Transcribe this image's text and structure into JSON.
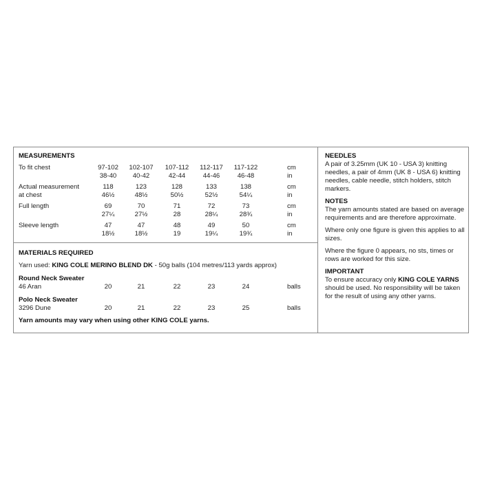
{
  "measurements": {
    "title": "MEASUREMENTS",
    "rows": [
      {
        "label": [
          "To fit chest",
          ""
        ],
        "cm": [
          "97-102",
          "102-107",
          "107-112",
          "112-117",
          "117-122"
        ],
        "in": [
          "38-40",
          "40-42",
          "42-44",
          "44-46",
          "46-48"
        ]
      },
      {
        "label": [
          "Actual measurement",
          "at chest"
        ],
        "cm": [
          "118",
          "123",
          "128",
          "133",
          "138"
        ],
        "in": [
          "46½",
          "48½",
          "50½",
          "52½",
          "54¼"
        ]
      },
      {
        "label": [
          "Full length",
          ""
        ],
        "cm": [
          "69",
          "70",
          "71",
          "72",
          "73"
        ],
        "in": [
          "27¼",
          "27½",
          "28",
          "28¼",
          "28¾"
        ]
      },
      {
        "label": [
          "Sleeve length",
          ""
        ],
        "cm": [
          "47",
          "47",
          "48",
          "49",
          "50"
        ],
        "in": [
          "18½",
          "18½",
          "19",
          "19¼",
          "19¾"
        ]
      }
    ],
    "unit_cm": "cm",
    "unit_in": "in"
  },
  "materials": {
    "title": "MATERIALS REQUIRED",
    "yarn_prefix": "Yarn used: ",
    "yarn_name": "KING COLE MERINO BLEND DK",
    "yarn_suffix": " - 50g balls (104 metres/113 yards approx)",
    "items": [
      {
        "name": "Round Neck Sweater",
        "shade": "46 Aran",
        "balls": [
          "20",
          "21",
          "22",
          "23",
          "24"
        ]
      },
      {
        "name": "Polo Neck Sweater",
        "shade": "3296 Dune",
        "balls": [
          "20",
          "21",
          "22",
          "23",
          "25"
        ]
      }
    ],
    "unit": "balls",
    "note": "Yarn amounts may vary when using other KING COLE yarns."
  },
  "needles": {
    "title": "NEEDLES",
    "text": "A pair of 3.25mm (UK 10 - USA 3) knitting needles, a pair of 4mm (UK 8 - USA 6) knitting needles, cable needle, stitch holders, stitch markers."
  },
  "notes": {
    "title": "NOTES",
    "paragraphs": [
      "The yarn amounts stated are based on average requirements and are therefore approximate.",
      "Where only one figure is given this applies to all sizes.",
      "Where the figure 0 appears, no sts, times or rows are worked for this size."
    ]
  },
  "important": {
    "title": "IMPORTANT",
    "prefix": "To ensure accuracy only ",
    "bold": "KING COLE YARNS",
    "suffix": " should be used. No responsibility will be taken for the result of using any other yarns."
  }
}
